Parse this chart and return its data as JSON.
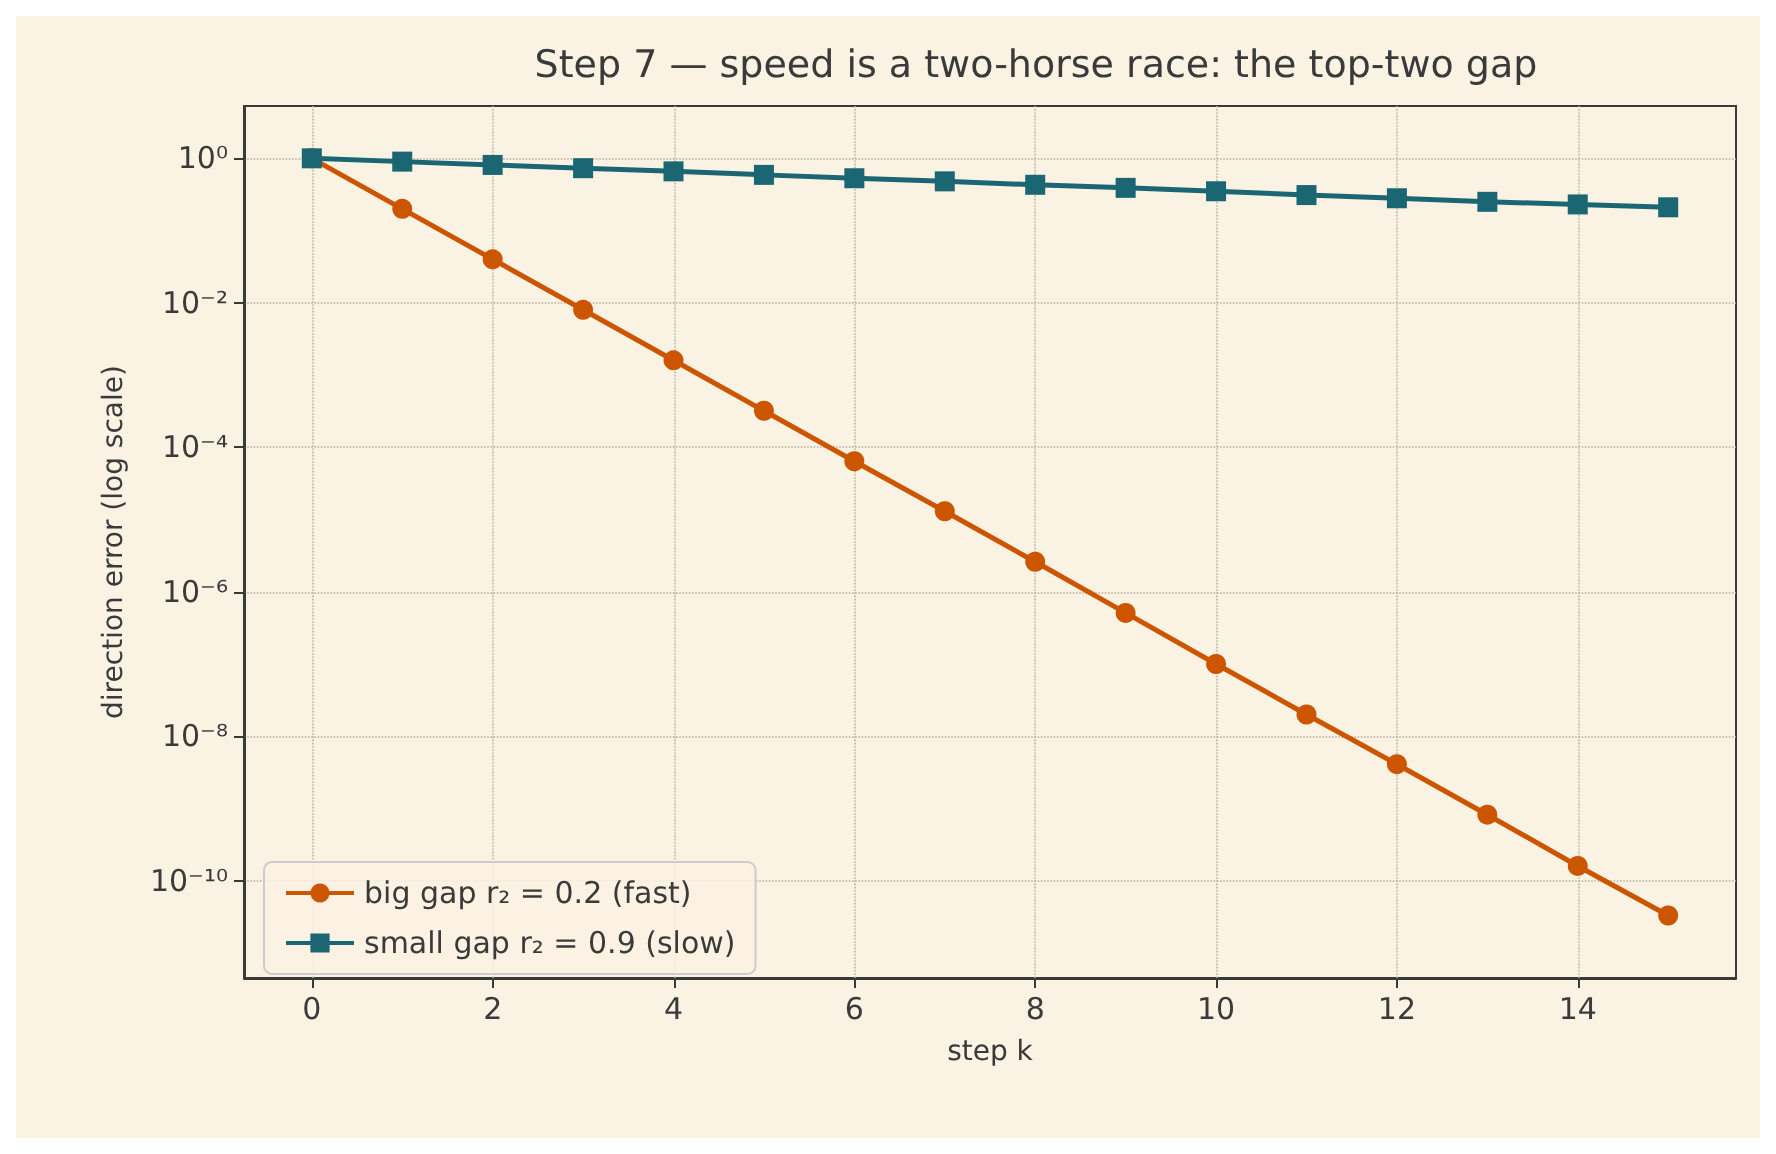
{
  "chart_data": {
    "type": "line",
    "title": "Step 7 — speed is a two-horse race: the top-two gap",
    "xlabel": "step k",
    "ylabel": "direction error (log scale)",
    "x": [
      0,
      1,
      2,
      3,
      4,
      5,
      6,
      7,
      8,
      9,
      10,
      11,
      12,
      13,
      14,
      15
    ],
    "series": [
      {
        "name": "big gap r₂ = 0.2 (fast)",
        "color": "#cc5500",
        "marker": "circle",
        "values": [
          1,
          0.2,
          0.04,
          0.008,
          0.0016,
          0.00032,
          6.4e-05,
          1.3e-05,
          2.6e-06,
          5.1e-07,
          1e-07,
          2e-08,
          4.1e-09,
          8.2e-10,
          1.6e-10,
          3.3e-11
        ]
      },
      {
        "name": "small gap r₂ = 0.9 (slow)",
        "color": "#1b6673",
        "marker": "square",
        "values": [
          1,
          0.9,
          0.81,
          0.73,
          0.66,
          0.59,
          0.53,
          0.48,
          0.43,
          0.39,
          0.35,
          0.31,
          0.28,
          0.25,
          0.23,
          0.21
        ]
      }
    ],
    "log": "y",
    "xlim": [
      -0.75,
      15.75
    ],
    "xticks": [
      0,
      2,
      4,
      6,
      8,
      10,
      12,
      14
    ],
    "ylim": [
      4.5e-12,
      5.3
    ],
    "yticks": [
      {
        "value": 1,
        "label": "10⁰"
      },
      {
        "value": 0.01,
        "label": "10⁻²"
      },
      {
        "value": 0.0001,
        "label": "10⁻⁴"
      },
      {
        "value": 1e-06,
        "label": "10⁻⁶"
      },
      {
        "value": 1e-08,
        "label": "10⁻⁸"
      },
      {
        "value": 1e-10,
        "label": "10⁻¹⁰"
      }
    ],
    "grid": true,
    "legend": "bottom left",
    "line_style": "solid"
  }
}
